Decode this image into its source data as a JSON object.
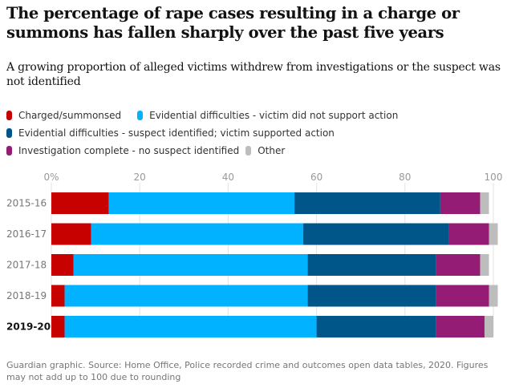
{
  "title": "The percentage of rape cases resulting in a charge or summons has fallen sharply over the past five years",
  "subtitle": "A growing proportion of alleged victims withdrew from investigations or the suspect was not identified",
  "legend": [
    {
      "label": "Charged/summonsed",
      "color": "#c70000"
    },
    {
      "label": "Evidential difficulties - victim did not support action",
      "color": "#00b2ff"
    },
    {
      "label": "Evidential difficulties - suspect identified; victim supported action",
      "color": "#005689"
    },
    {
      "label": "Investigation complete - no suspect identified",
      "color": "#951c75"
    },
    {
      "label": "Other",
      "color": "#bdbdbd"
    }
  ],
  "source": "Guardian graphic. Source: Home Office, Police recorded crime and outcomes open data tables, 2020. Figures may not add up to 100 due to rounding",
  "chart_data": {
    "type": "bar",
    "orientation": "horizontal",
    "stacked": true,
    "categories": [
      "2015-16",
      "2016-17",
      "2017-18",
      "2018-19",
      "2019-20"
    ],
    "highlight_category": "2019-20",
    "x_ticks": [
      "0%",
      "20",
      "40",
      "60",
      "80",
      "100"
    ],
    "xlim": [
      0,
      100
    ],
    "grid": true,
    "series": [
      {
        "name": "Charged/summonsed",
        "color": "#c70000",
        "values": [
          13,
          9,
          5,
          3,
          3
        ]
      },
      {
        "name": "Evidential difficulties - victim did not support action",
        "color": "#00b2ff",
        "values": [
          42,
          48,
          53,
          55,
          57
        ]
      },
      {
        "name": "Evidential difficulties - suspect identified; victim supported action",
        "color": "#005689",
        "values": [
          33,
          33,
          29,
          29,
          27
        ]
      },
      {
        "name": "Investigation complete - no suspect identified",
        "color": "#951c75",
        "values": [
          9,
          9,
          10,
          12,
          11
        ]
      },
      {
        "name": "Other",
        "color": "#bdbdbd",
        "values": [
          2,
          2,
          2,
          2,
          2
        ]
      }
    ]
  }
}
